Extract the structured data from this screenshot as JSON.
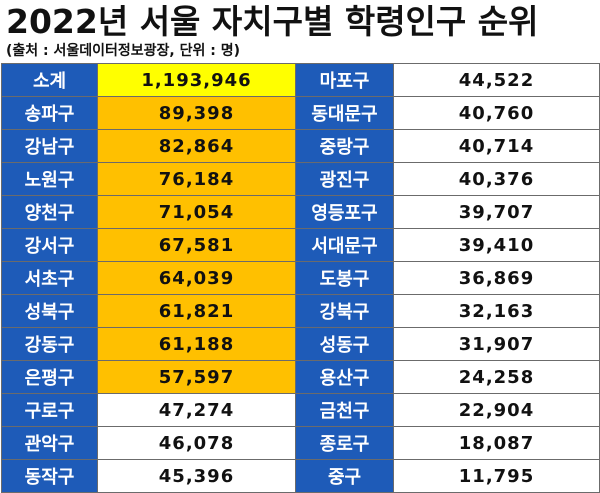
{
  "title": "2022년 서울 자치구별 학령인구 순위",
  "subtitle": "(출처 : 서울데이터정보광장, 단위 : 명)",
  "colors": {
    "name_cell": "#1e5bb8",
    "total_highlight": "#ffff00",
    "top10_highlight": "#ffc000",
    "plain": "#ffffff"
  },
  "rows": [
    {
      "left_name": "소계",
      "left_value": "1,193,946",
      "right_name": "마포구",
      "right_value": "44,522"
    },
    {
      "left_name": "송파구",
      "left_value": "89,398",
      "right_name": "동대문구",
      "right_value": "40,760"
    },
    {
      "left_name": "강남구",
      "left_value": "82,864",
      "right_name": "중랑구",
      "right_value": "40,714"
    },
    {
      "left_name": "노원구",
      "left_value": "76,184",
      "right_name": "광진구",
      "right_value": "40,376"
    },
    {
      "left_name": "양천구",
      "left_value": "71,054",
      "right_name": "영등포구",
      "right_value": "39,707"
    },
    {
      "left_name": "강서구",
      "left_value": "67,581",
      "right_name": "서대문구",
      "right_value": "39,410"
    },
    {
      "left_name": "서초구",
      "left_value": "64,039",
      "right_name": "도봉구",
      "right_value": "36,869"
    },
    {
      "left_name": "성북구",
      "left_value": "61,821",
      "right_name": "강북구",
      "right_value": "32,163"
    },
    {
      "left_name": "강동구",
      "left_value": "61,188",
      "right_name": "성동구",
      "right_value": "31,907"
    },
    {
      "left_name": "은평구",
      "left_value": "57,597",
      "right_name": "용산구",
      "right_value": "24,258"
    },
    {
      "left_name": "구로구",
      "left_value": "47,274",
      "right_name": "금천구",
      "right_value": "22,904"
    },
    {
      "left_name": "관악구",
      "left_value": "46,078",
      "right_name": "종로구",
      "right_value": "18,087"
    },
    {
      "left_name": "동작구",
      "left_value": "45,396",
      "right_name": "중구",
      "right_value": "11,795"
    }
  ]
}
